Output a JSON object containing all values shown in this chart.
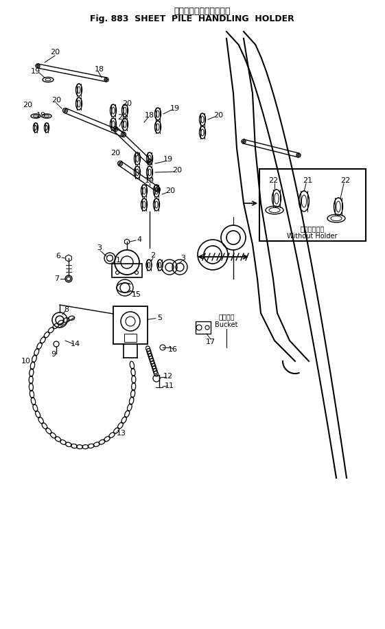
{
  "title_japanese": "矢　板　打　抜　ホルダ",
  "title_english": "Fig. 883  SHEET  PILE  HANDLING  HOLDER",
  "bg_color": "#ffffff",
  "line_color": "#000000",
  "inset_label_japanese": "ホルダ未装着",
  "inset_label_english": "Without Holder",
  "bucket_japanese": "バケット",
  "bucket_english": "Bucket"
}
